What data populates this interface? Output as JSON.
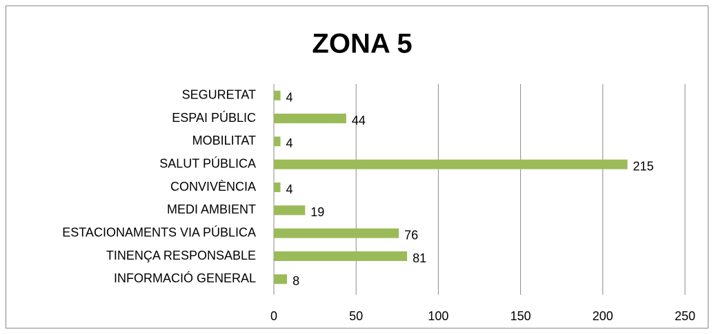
{
  "chart_data": {
    "type": "barh",
    "title": "ZONA 5",
    "categories": [
      "SEGURETAT",
      "ESPAI PÚBLIC",
      "MOBILITAT",
      "SALUT PÚBLICA",
      "CONVIVÈNCIA",
      "MEDI AMBIENT",
      "ESTACIONAMENTS VIA PÚBLICA",
      "TINENÇA RESPONSABLE",
      "INFORMACIÓ GENERAL"
    ],
    "values": [
      4,
      44,
      4,
      215,
      4,
      19,
      76,
      81,
      8
    ],
    "color": "#9bbb59",
    "xlim": [
      0,
      250
    ],
    "xticks": [
      0,
      50,
      100,
      150,
      200,
      250
    ],
    "grid": true
  }
}
